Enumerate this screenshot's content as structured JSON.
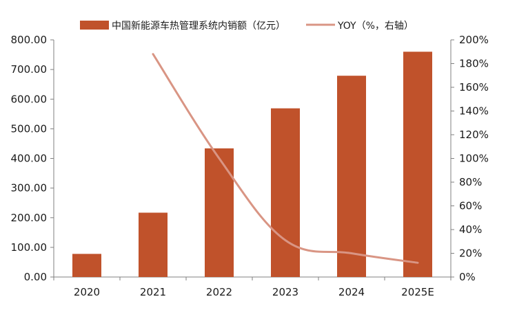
{
  "chart_data": {
    "type": "bar",
    "categories": [
      "2020",
      "2021",
      "2022",
      "2023",
      "2024",
      "2025E"
    ],
    "series": [
      {
        "name": "中国新能源车热管理系统内销额（亿元）",
        "type": "bar",
        "axis": "left",
        "values": [
          78,
          217,
          434,
          569,
          679,
          760
        ]
      },
      {
        "name": "YOY（%，右轴）",
        "type": "line",
        "axis": "right",
        "values": [
          null,
          188,
          100,
          31,
          20,
          12
        ]
      }
    ],
    "y_left": {
      "min": 0,
      "max": 800,
      "ticks": [
        "0.00",
        "100.00",
        "200.00",
        "300.00",
        "400.00",
        "500.00",
        "600.00",
        "700.00",
        "800.00"
      ]
    },
    "y_right": {
      "min": 0,
      "max": 200,
      "ticks": [
        "0%",
        "20%",
        "40%",
        "60%",
        "80%",
        "100%",
        "120%",
        "140%",
        "160%",
        "180%",
        "200%"
      ]
    },
    "legend_position": "top",
    "grid": false,
    "colors": {
      "bar": "#C0522B",
      "line": "#D99584",
      "axis": "#7f7f7f"
    }
  }
}
